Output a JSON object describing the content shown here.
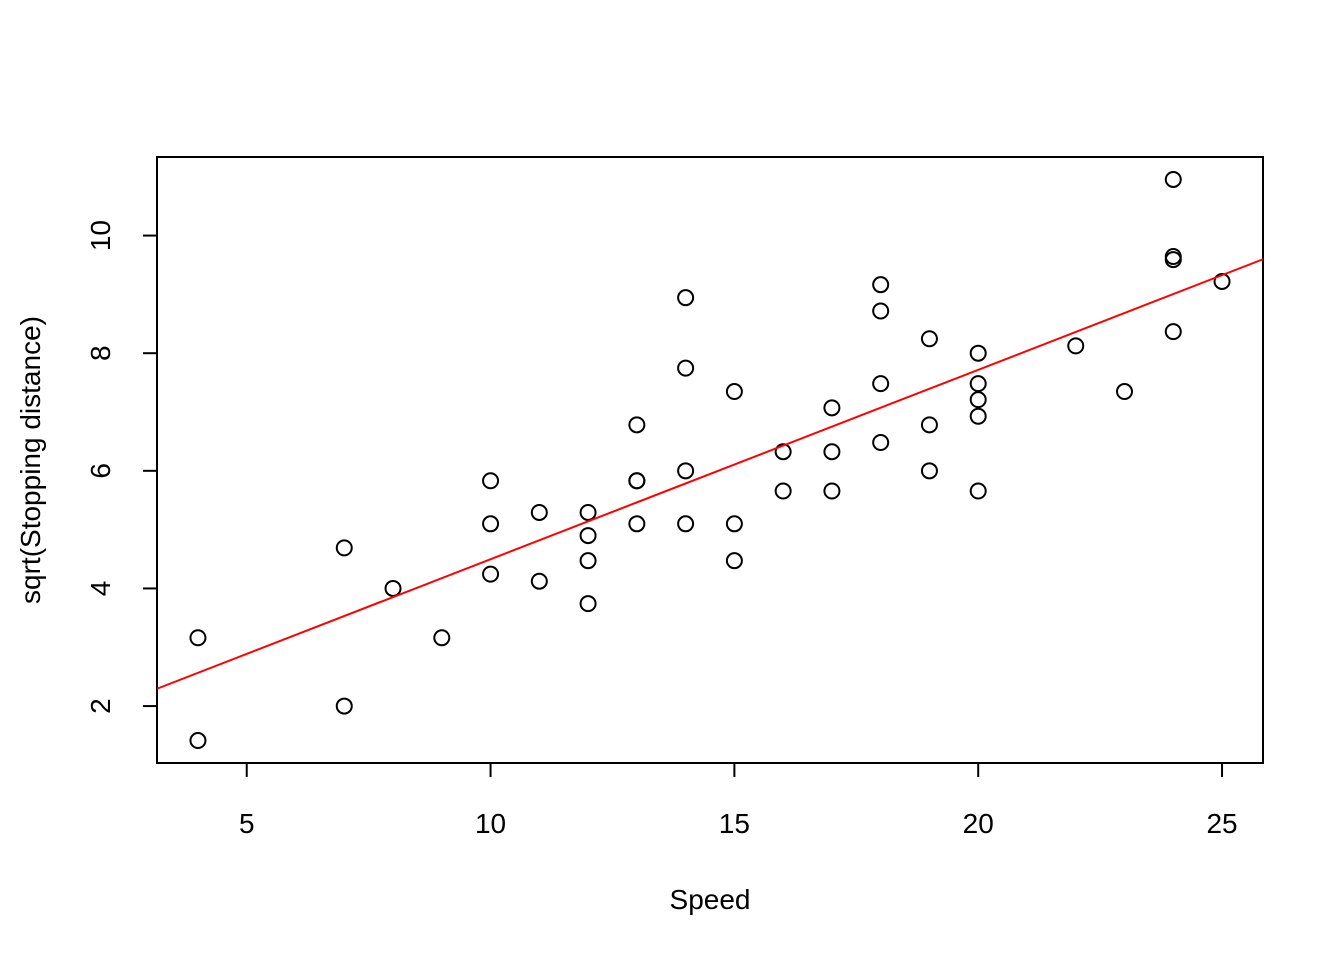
{
  "chart_data": {
    "type": "scatter",
    "x_label": "Speed",
    "y_label": "sqrt(Stopping distance)",
    "x": [
      4,
      4,
      7,
      7,
      8,
      9,
      10,
      10,
      10,
      11,
      11,
      12,
      12,
      12,
      12,
      13,
      13,
      13,
      13,
      14,
      14,
      14,
      14,
      15,
      15,
      15,
      16,
      16,
      17,
      17,
      17,
      18,
      18,
      18,
      18,
      19,
      19,
      19,
      20,
      20,
      20,
      20,
      20,
      22,
      23,
      24,
      24,
      24,
      24,
      25
    ],
    "values": [
      1.414,
      3.162,
      2,
      4.69,
      4,
      3.162,
      4.243,
      5.099,
      5.831,
      4.123,
      5.292,
      3.742,
      4.472,
      4.899,
      5.292,
      5.099,
      5.831,
      5.831,
      6.782,
      5.099,
      6,
      7.746,
      8.944,
      4.472,
      5.099,
      7.348,
      5.657,
      6.325,
      5.657,
      6.325,
      7.071,
      6.481,
      7.483,
      8.718,
      9.165,
      6,
      6.782,
      8.246,
      5.657,
      6.928,
      7.211,
      7.483,
      8,
      8.124,
      7.348,
      8.367,
      9.592,
      9.644,
      10.954,
      9.22
    ],
    "color": "black",
    "fit": {
      "intercept": 1.277,
      "slope": 0.322,
      "color": "red"
    },
    "xlim": [
      3.16,
      25.84
    ],
    "ylim": [
      1.032,
      11.336
    ],
    "xticks": [
      5,
      10,
      15,
      20,
      25
    ],
    "yticks": [
      2,
      4,
      6,
      8,
      10
    ]
  }
}
